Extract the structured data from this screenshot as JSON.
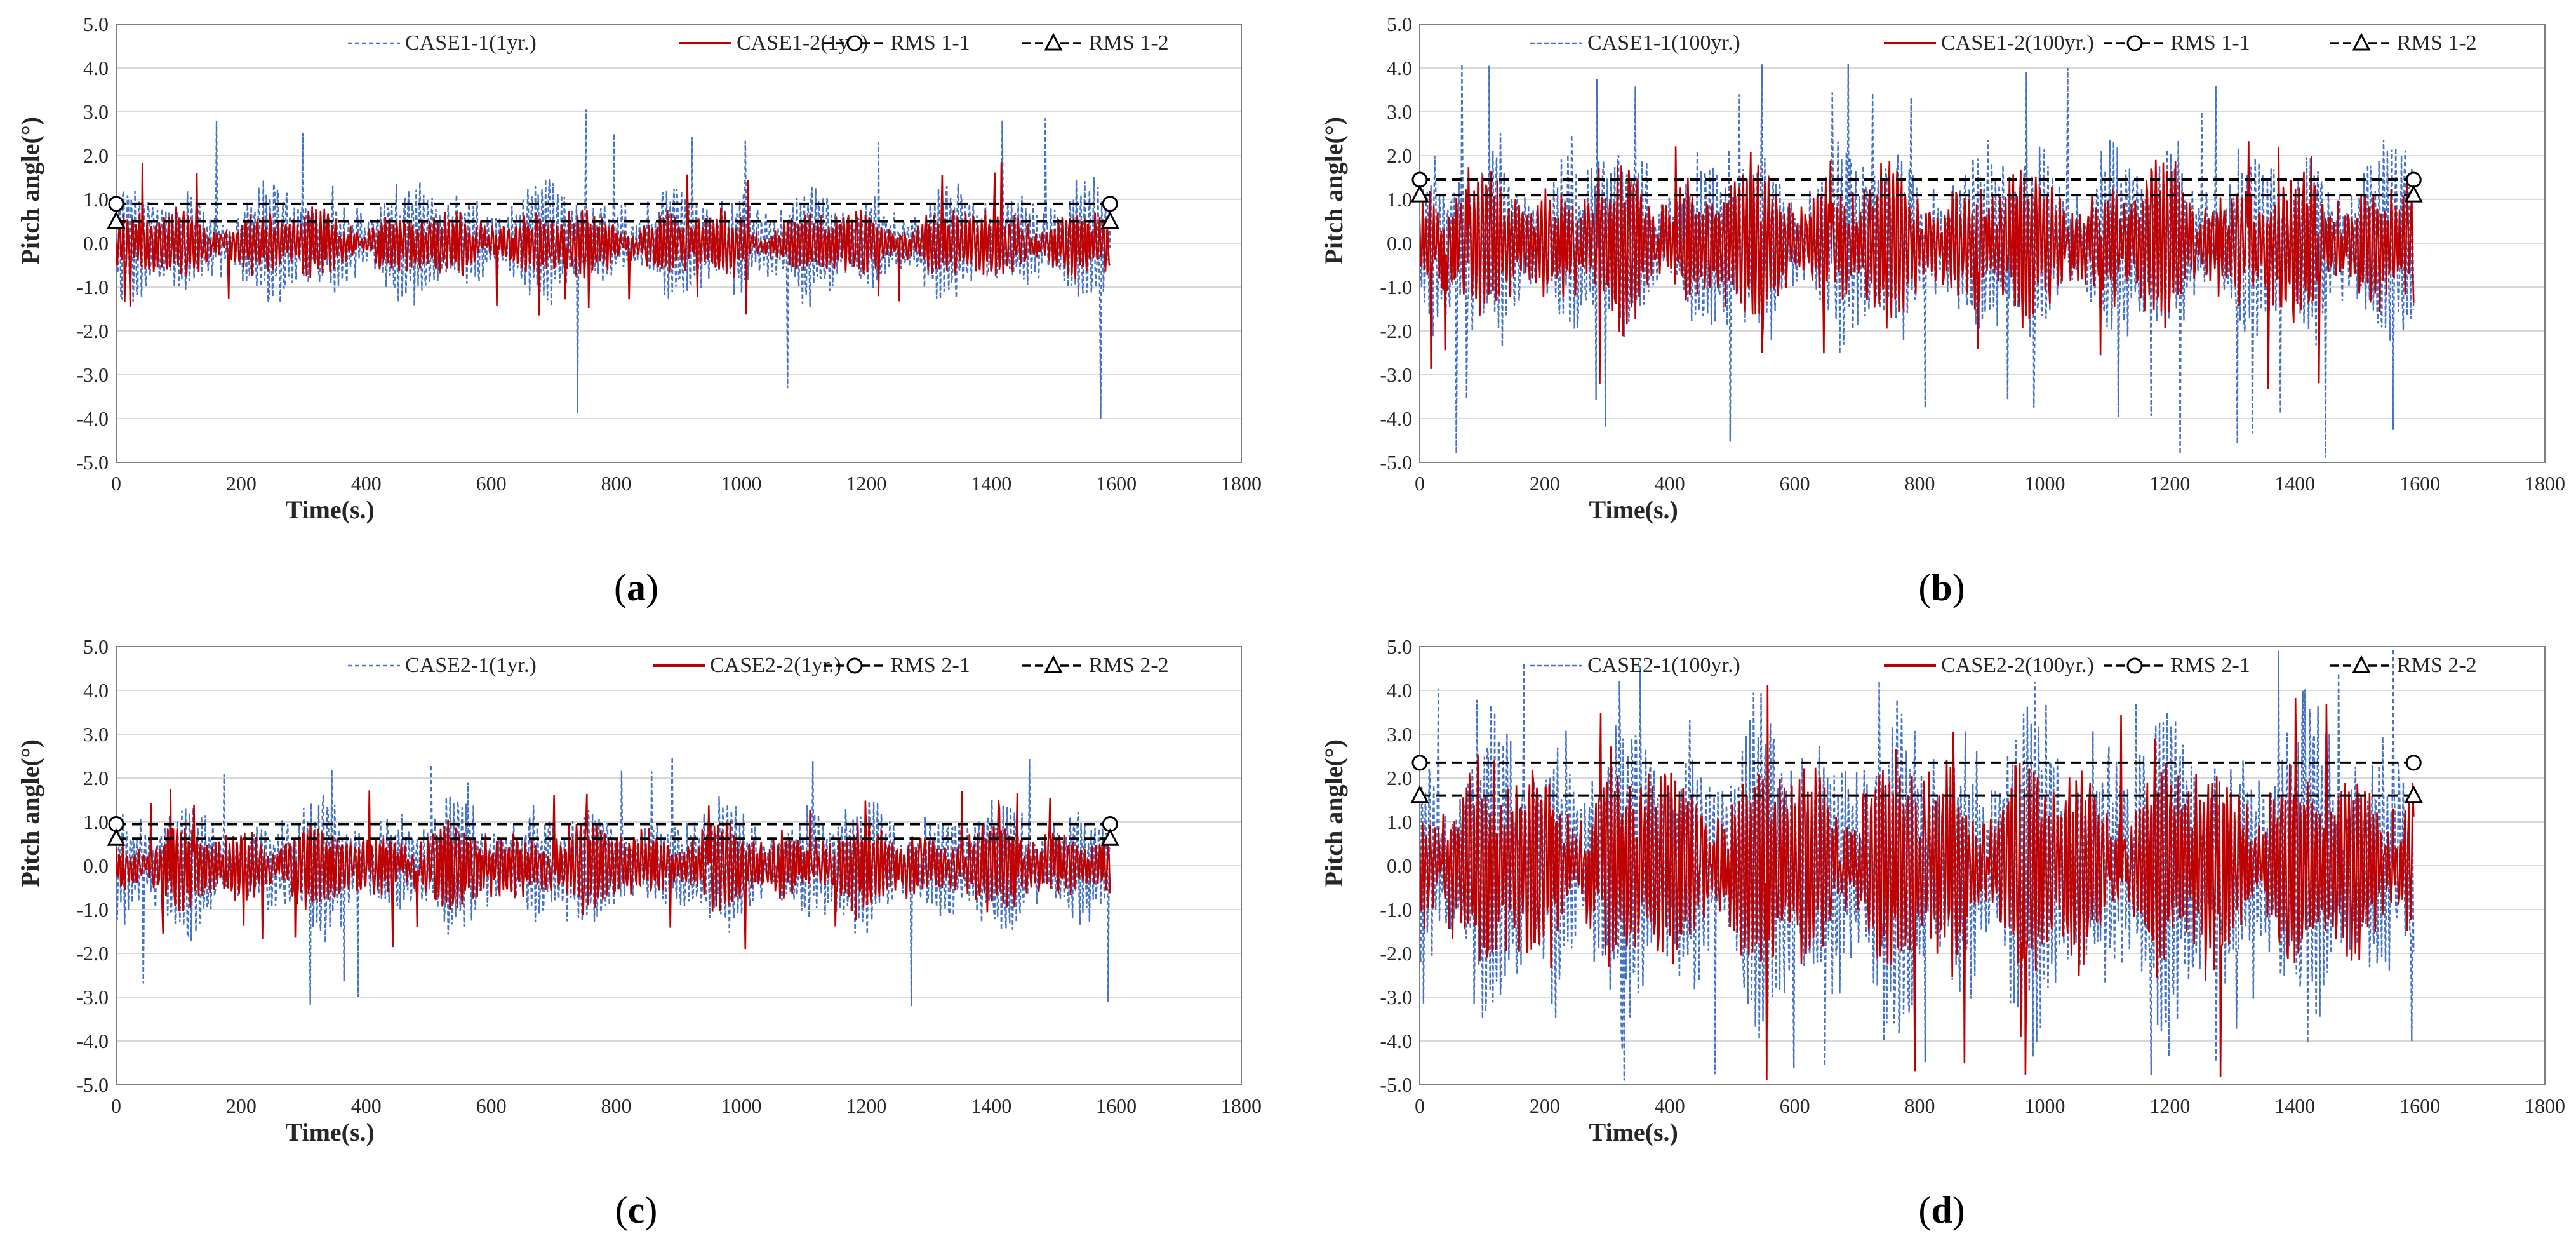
{
  "colors": {
    "case1": "#4472c4",
    "case2": "#c00000",
    "rms": "#000000",
    "grid": "#d9d9d9",
    "axis": "#7f7f7f"
  },
  "chart_data": [
    {
      "type": "line",
      "panel_label": "a",
      "xlabel": "Time(s.)",
      "ylabel": "Pitch angle(°)",
      "xlim": [
        0,
        1800
      ],
      "ylim": [
        -5,
        5
      ],
      "x_ticks": [
        0,
        200,
        400,
        600,
        800,
        1000,
        1200,
        1400,
        1600,
        1800
      ],
      "y_ticks": [
        5,
        4,
        3,
        2,
        1,
        0,
        -1,
        -2,
        -3,
        -4,
        -5
      ],
      "x_tick_labels": [
        "0",
        "200",
        "400",
        "600",
        "800",
        "1000",
        "1200",
        "1400",
        "1600",
        "1800"
      ],
      "y_tick_labels": [
        "5.0",
        "4.0",
        "3.0",
        "2.0",
        "1.0",
        "0.0",
        "-1.0",
        "-2.0",
        "-3.0",
        "-4.0",
        "-5.0"
      ],
      "grid": true,
      "legend_position": "top-right",
      "series": [
        {
          "name": "CASE1-1(1yr.)",
          "style": "dashed-blue",
          "duration": 1590,
          "amplitude": 0.85,
          "peak_max": 3.2,
          "peak_min": -4.5,
          "seed": 11
        },
        {
          "name": "CASE1-2(1yr.)",
          "style": "solid-red",
          "duration": 1590,
          "amplitude": 0.5,
          "peak_max": 1.9,
          "peak_min": -1.7,
          "seed": 12
        },
        {
          "name": "RMS 1-1",
          "style": "rms-circle",
          "rms": 0.9,
          "duration": 1590
        },
        {
          "name": "RMS 1-2",
          "style": "rms-triangle",
          "rms": 0.5,
          "duration": 1590
        }
      ]
    },
    {
      "type": "line",
      "panel_label": "b",
      "xlabel": "Time(s.)",
      "ylabel": "Pitch angle(°)",
      "xlim": [
        0,
        1800
      ],
      "ylim": [
        -5,
        5
      ],
      "x_ticks": [
        0,
        200,
        400,
        600,
        800,
        1000,
        1200,
        1400,
        1600,
        1800
      ],
      "y_ticks": [
        5,
        4,
        3,
        2,
        1,
        0,
        -1,
        -2,
        -3,
        -4,
        -5
      ],
      "x_tick_labels": [
        "0",
        "200",
        "400",
        "600",
        "800",
        "1000",
        "1200",
        "1400",
        "1600",
        "1800"
      ],
      "y_tick_labels": [
        "5.0",
        "4.0",
        "3.0",
        "2.0",
        "1.0",
        "0.0",
        "-1.0",
        "-2.0",
        "-3.0",
        "-4.0",
        "-5.0"
      ],
      "grid": true,
      "legend_position": "top-right",
      "series": [
        {
          "name": "CASE1-1(100yr.)",
          "style": "dashed-blue",
          "duration": 1590,
          "amplitude": 1.45,
          "peak_max": 4.2,
          "peak_min": -4.9,
          "seed": 21
        },
        {
          "name": "CASE1-2(100yr.)",
          "style": "solid-red",
          "duration": 1590,
          "amplitude": 1.1,
          "peak_max": 2.4,
          "peak_min": -3.4,
          "seed": 22
        },
        {
          "name": "RMS 1-1",
          "style": "rms-circle",
          "rms": 1.45,
          "duration": 1590
        },
        {
          "name": "RMS 1-2",
          "style": "rms-triangle",
          "rms": 1.1,
          "duration": 1590
        }
      ]
    },
    {
      "type": "line",
      "panel_label": "c",
      "xlabel": "Time(s.)",
      "ylabel": "Pitch angle(°)",
      "xlim": [
        0,
        1800
      ],
      "ylim": [
        -5,
        5
      ],
      "x_ticks": [
        0,
        200,
        400,
        600,
        800,
        1000,
        1200,
        1400,
        1600,
        1800
      ],
      "y_ticks": [
        5,
        4,
        3,
        2,
        1,
        0,
        -1,
        -2,
        -3,
        -4,
        -5
      ],
      "x_tick_labels": [
        "0",
        "200",
        "400",
        "600",
        "800",
        "1000",
        "1200",
        "1400",
        "1600",
        "1800"
      ],
      "y_tick_labels": [
        "5.0",
        "4.0",
        "3.0",
        "2.0",
        "1.0",
        "0.0",
        "-1.0",
        "-2.0",
        "-3.0",
        "-4.0",
        "-5.0"
      ],
      "grid": true,
      "legend_position": "top-right",
      "series": [
        {
          "name": "CASE2-1(1yr.)",
          "style": "dashed-blue",
          "duration": 1590,
          "amplitude": 0.95,
          "peak_max": 2.5,
          "peak_min": -3.4,
          "seed": 31
        },
        {
          "name": "CASE2-2(1yr.)",
          "style": "solid-red",
          "duration": 1590,
          "amplitude": 0.62,
          "peak_max": 1.8,
          "peak_min": -1.9,
          "seed": 32
        },
        {
          "name": "RMS 2-1",
          "style": "rms-circle",
          "rms": 0.95,
          "duration": 1590
        },
        {
          "name": "RMS 2-2",
          "style": "rms-triangle",
          "rms": 0.62,
          "duration": 1590
        }
      ]
    },
    {
      "type": "line",
      "panel_label": "d",
      "xlabel": "Time(s.)",
      "ylabel": "Pitch angle(°)",
      "xlim": [
        0,
        1800
      ],
      "ylim": [
        -5,
        5
      ],
      "x_ticks": [
        0,
        200,
        400,
        600,
        800,
        1000,
        1200,
        1400,
        1600,
        1800
      ],
      "y_ticks": [
        5,
        4,
        3,
        2,
        1,
        0,
        -1,
        -2,
        -3,
        -4,
        -5
      ],
      "x_tick_labels": [
        "0",
        "200",
        "400",
        "600",
        "800",
        "1000",
        "1200",
        "1400",
        "1600",
        "1800"
      ],
      "y_tick_labels": [
        "5.0",
        "4.0",
        "3.0",
        "2.0",
        "1.0",
        "0.0",
        "-1.0",
        "-2.0",
        "-3.0",
        "-4.0",
        "-5.0"
      ],
      "grid": true,
      "legend_position": "top-right",
      "series": [
        {
          "name": "CASE2-1(100yr.)",
          "style": "dashed-blue",
          "duration": 1590,
          "amplitude": 2.35,
          "peak_max": 5.0,
          "peak_min": -5.0,
          "seed": 41
        },
        {
          "name": "CASE2-2(100yr.)",
          "style": "solid-red",
          "duration": 1590,
          "amplitude": 1.6,
          "peak_max": 4.3,
          "peak_min": -5.0,
          "seed": 42
        },
        {
          "name": "RMS 2-1",
          "style": "rms-circle",
          "rms": 2.35,
          "duration": 1590
        },
        {
          "name": "RMS 2-2",
          "style": "rms-triangle",
          "rms": 1.6,
          "duration": 1590
        }
      ]
    }
  ]
}
